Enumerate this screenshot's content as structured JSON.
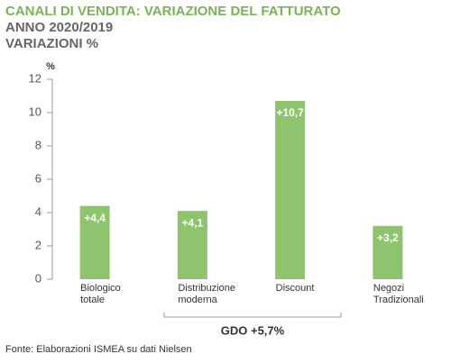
{
  "chart_data": {
    "type": "bar",
    "title": "CANALI DI VENDITA: VARIAZIONE DEL FATTURATO",
    "subtitle": [
      "ANNO 2020/2019",
      "VARIAZIONI %"
    ],
    "y_label": "%",
    "categories": [
      "Biologico totale",
      "Distribuzione moderna",
      "Discount",
      "Negozi Tradizionali"
    ],
    "values": [
      4.4,
      4.1,
      10.7,
      3.2
    ],
    "value_labels": [
      "+4,4",
      "+4,1",
      "+10,7",
      "+3,2"
    ],
    "color": "#8fc46f",
    "ylim": [
      0,
      12
    ],
    "yticks": [
      0,
      2,
      4,
      6,
      8,
      10,
      12
    ],
    "annotation": "GDO +5,7%",
    "source": "Fonte: Elaborazioni ISMEA su dati Nielsen"
  }
}
